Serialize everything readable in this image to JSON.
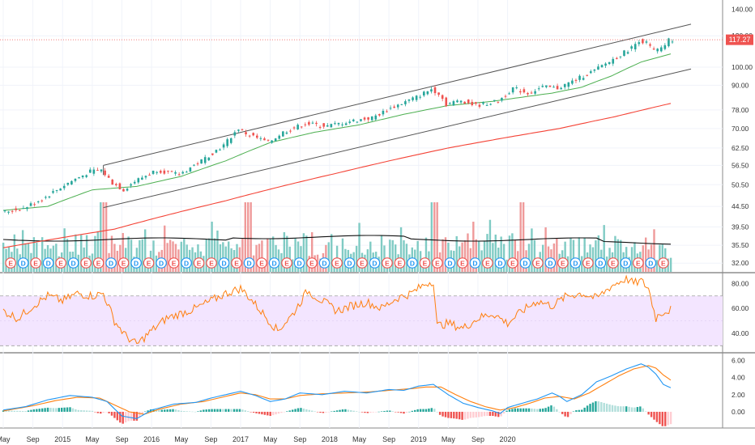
{
  "chart_data": [
    {
      "type": "candlestick",
      "title": "",
      "yscale": "log",
      "ylim": [
        31,
        145
      ],
      "y_ticks": [
        "140.00",
        "120.00",
        "100.00",
        "90.00",
        "78.00",
        "70.00",
        "62.50",
        "56.50",
        "50.50",
        "44.50",
        "39.50",
        "35.50",
        "32.00"
      ],
      "y_tick_values": [
        140,
        120,
        100,
        90,
        78,
        70,
        62.5,
        56.5,
        50.5,
        44.5,
        39.5,
        35.5,
        32
      ],
      "last_price": "117.27",
      "last_price_value": 117.27,
      "colors": {
        "up": "#26a69a",
        "down": "#ef5350",
        "ma50": "#4caf50",
        "ma200": "#f44336",
        "channel": "#555555",
        "volume_ma": "#111111",
        "price_line": "#ef5350"
      },
      "close_path": [
        [
          0,
          43
        ],
        [
          6,
          44
        ],
        [
          12,
          47
        ],
        [
          18,
          51
        ],
        [
          24,
          54.5
        ],
        [
          27,
          55
        ],
        [
          30,
          51
        ],
        [
          33,
          49
        ],
        [
          36,
          51.5
        ],
        [
          42,
          55
        ],
        [
          48,
          53.5
        ],
        [
          54,
          58
        ],
        [
          60,
          63.5
        ],
        [
          64,
          70
        ],
        [
          66,
          68
        ],
        [
          72,
          64.5
        ],
        [
          76,
          68.5
        ],
        [
          82,
          72
        ],
        [
          88,
          71
        ],
        [
          94,
          73
        ],
        [
          100,
          74.5
        ],
        [
          106,
          79.5
        ],
        [
          112,
          84
        ],
        [
          116,
          88
        ],
        [
          118,
          86
        ],
        [
          120,
          80.5
        ],
        [
          124,
          82.5
        ],
        [
          128,
          80
        ],
        [
          134,
          82
        ],
        [
          138,
          88.5
        ],
        [
          142,
          86
        ],
        [
          146,
          89
        ],
        [
          150,
          88.5
        ],
        [
          154,
          92
        ],
        [
          160,
          98
        ],
        [
          166,
          106
        ],
        [
          170,
          112
        ],
        [
          172,
          117
        ],
        [
          174,
          115
        ],
        [
          176,
          110
        ],
        [
          178,
          111
        ],
        [
          180,
          117
        ]
      ],
      "ma50_path": [
        [
          0,
          43.5
        ],
        [
          12,
          44.5
        ],
        [
          24,
          49
        ],
        [
          36,
          50
        ],
        [
          48,
          53
        ],
        [
          60,
          58
        ],
        [
          72,
          64.5
        ],
        [
          84,
          68.5
        ],
        [
          96,
          71.5
        ],
        [
          108,
          76
        ],
        [
          120,
          80
        ],
        [
          132,
          82
        ],
        [
          140,
          84
        ],
        [
          148,
          86
        ],
        [
          156,
          89
        ],
        [
          164,
          95
        ],
        [
          172,
          103
        ],
        [
          180,
          108
        ]
      ],
      "ma200_path": [
        [
          0,
          35
        ],
        [
          30,
          39
        ],
        [
          60,
          46
        ],
        [
          90,
          54
        ],
        [
          120,
          62.5
        ],
        [
          150,
          70
        ],
        [
          165,
          75
        ],
        [
          180,
          81
        ]
      ],
      "channel_upper": [
        [
          27,
          56.5
        ],
        [
          180,
          126
        ]
      ],
      "channel_lower": [
        [
          27,
          44.2
        ],
        [
          180,
          98
        ]
      ],
      "volume_pattern": [
        0.55,
        0.3,
        0.7,
        0.45,
        0.4,
        0.85,
        0.35,
        0.5,
        0.65,
        0.3,
        0.45,
        0.6,
        0.38,
        0.95,
        0.5,
        0.42,
        0.28,
        0.72,
        0.48,
        0.55,
        0.33,
        0.62,
        0.4,
        0.8,
        0.52,
        0.36,
        0.58,
        0.44,
        0.66,
        0.3
      ],
      "earnings_markers": [
        {
          "label": "E",
          "type": "E"
        },
        {
          "label": "D",
          "type": "D"
        },
        {
          "label": "E",
          "type": "E"
        },
        {
          "label": "D",
          "type": "D"
        },
        {
          "label": "E",
          "type": "E"
        },
        {
          "label": "D",
          "type": "D"
        },
        {
          "label": "E",
          "type": "E"
        },
        {
          "label": "E",
          "type": "E"
        },
        {
          "label": "D",
          "type": "D"
        },
        {
          "label": "E",
          "type": "E"
        },
        {
          "label": "D",
          "type": "D"
        },
        {
          "label": "E",
          "type": "E"
        },
        {
          "label": "D",
          "type": "D"
        },
        {
          "label": "E",
          "type": "E"
        },
        {
          "label": "D",
          "type": "D"
        },
        {
          "label": "E",
          "type": "E"
        },
        {
          "label": "E",
          "type": "E"
        },
        {
          "label": "D",
          "type": "D"
        },
        {
          "label": "E",
          "type": "E"
        },
        {
          "label": "D",
          "type": "D"
        },
        {
          "label": "E",
          "type": "E"
        },
        {
          "label": "D",
          "type": "D"
        },
        {
          "label": "E",
          "type": "E"
        },
        {
          "label": "D",
          "type": "D"
        },
        {
          "label": "E",
          "type": "E"
        },
        {
          "label": "D",
          "type": "D"
        },
        {
          "label": "E",
          "type": "E"
        },
        {
          "label": "D",
          "type": "D"
        },
        {
          "label": "E",
          "type": "E"
        },
        {
          "label": "D",
          "type": "D"
        },
        {
          "label": "E",
          "type": "E"
        },
        {
          "label": "E",
          "type": "E"
        },
        {
          "label": "D",
          "type": "D"
        },
        {
          "label": "E",
          "type": "E"
        },
        {
          "label": "E",
          "type": "E"
        },
        {
          "label": "D",
          "type": "D"
        },
        {
          "label": "E",
          "type": "E"
        },
        {
          "label": "D",
          "type": "D"
        },
        {
          "label": "E",
          "type": "E"
        },
        {
          "label": "D",
          "type": "D"
        },
        {
          "label": "E",
          "type": "E"
        },
        {
          "label": "D",
          "type": "D"
        },
        {
          "label": "E",
          "type": "E"
        },
        {
          "label": "D",
          "type": "D"
        },
        {
          "label": "E",
          "type": "E"
        },
        {
          "label": "D",
          "type": "D"
        },
        {
          "label": "E",
          "type": "E"
        },
        {
          "label": "D",
          "type": "D"
        },
        {
          "label": "E",
          "type": "E"
        },
        {
          "label": "D",
          "type": "D"
        },
        {
          "label": "E",
          "type": "E"
        },
        {
          "label": "D",
          "type": "D"
        },
        {
          "label": "E",
          "type": "E"
        }
      ]
    },
    {
      "type": "line",
      "title": "",
      "ylim": [
        25,
        88
      ],
      "y_ticks": [
        "80.00",
        "60.00",
        "40.00"
      ],
      "y_tick_values": [
        80,
        60,
        40
      ],
      "band": [
        30,
        70
      ],
      "colors": {
        "line": "#ff7f0e",
        "band_fill": "#f3e5ff",
        "band_edge": "#9e9e9e"
      },
      "path": [
        [
          0,
          58
        ],
        [
          4,
          52
        ],
        [
          8,
          62
        ],
        [
          12,
          70
        ],
        [
          16,
          66
        ],
        [
          20,
          72
        ],
        [
          24,
          70
        ],
        [
          27,
          72
        ],
        [
          30,
          50
        ],
        [
          33,
          38
        ],
        [
          36,
          31
        ],
        [
          40,
          42
        ],
        [
          44,
          52
        ],
        [
          48,
          56
        ],
        [
          52,
          60
        ],
        [
          56,
          66
        ],
        [
          60,
          72
        ],
        [
          64,
          76
        ],
        [
          66,
          70
        ],
        [
          70,
          56
        ],
        [
          74,
          42
        ],
        [
          78,
          55
        ],
        [
          82,
          74
        ],
        [
          86,
          66
        ],
        [
          90,
          58
        ],
        [
          94,
          62
        ],
        [
          98,
          65
        ],
        [
          102,
          60
        ],
        [
          106,
          68
        ],
        [
          110,
          72
        ],
        [
          114,
          80
        ],
        [
          116,
          82
        ],
        [
          117,
          46
        ],
        [
          120,
          48
        ],
        [
          124,
          44
        ],
        [
          128,
          52
        ],
        [
          132,
          56
        ],
        [
          136,
          48
        ],
        [
          140,
          58
        ],
        [
          144,
          66
        ],
        [
          148,
          62
        ],
        [
          152,
          70
        ],
        [
          156,
          72
        ],
        [
          160,
          68
        ],
        [
          164,
          78
        ],
        [
          168,
          84
        ],
        [
          170,
          80
        ],
        [
          172,
          82
        ],
        [
          174,
          76
        ],
        [
          176,
          52
        ],
        [
          177,
          56
        ],
        [
          180,
          59
        ]
      ]
    },
    {
      "type": "line",
      "title": "",
      "ylim": [
        -1.8,
        6.8
      ],
      "y_ticks": [
        "6.00",
        "4.00",
        "2.00",
        "0.00"
      ],
      "y_tick_values": [
        6,
        4,
        2,
        0
      ],
      "colors": {
        "macd": "#2196f3",
        "signal": "#ff7f0e",
        "hist_up_strong": "#26a69a",
        "hist_up_weak": "#b2dfdb",
        "hist_down_strong": "#ef5350",
        "hist_down_weak": "#ffcdd2"
      },
      "macd_path": [
        [
          0,
          0.2
        ],
        [
          6,
          0.6
        ],
        [
          12,
          1.4
        ],
        [
          18,
          1.9
        ],
        [
          24,
          1.7
        ],
        [
          28,
          1.2
        ],
        [
          32,
          -0.5
        ],
        [
          36,
          -0.8
        ],
        [
          40,
          0.2
        ],
        [
          46,
          0.9
        ],
        [
          52,
          1.1
        ],
        [
          56,
          1.6
        ],
        [
          60,
          2.0
        ],
        [
          64,
          2.4
        ],
        [
          68,
          1.9
        ],
        [
          72,
          1.2
        ],
        [
          76,
          1.5
        ],
        [
          80,
          2.2
        ],
        [
          86,
          2.0
        ],
        [
          92,
          2.4
        ],
        [
          98,
          2.2
        ],
        [
          104,
          2.6
        ],
        [
          108,
          2.5
        ],
        [
          112,
          3.0
        ],
        [
          116,
          3.2
        ],
        [
          120,
          2.0
        ],
        [
          124,
          1.0
        ],
        [
          128,
          0.5
        ],
        [
          132,
          0.1
        ],
        [
          134,
          -0.2
        ],
        [
          136,
          0.5
        ],
        [
          140,
          1.0
        ],
        [
          144,
          1.5
        ],
        [
          148,
          2.2
        ],
        [
          150,
          1.8
        ],
        [
          152,
          1.2
        ],
        [
          156,
          2.0
        ],
        [
          160,
          3.5
        ],
        [
          164,
          4.2
        ],
        [
          168,
          5.0
        ],
        [
          172,
          5.6
        ],
        [
          174,
          5.2
        ],
        [
          176,
          4.4
        ],
        [
          178,
          3.2
        ],
        [
          180,
          2.8
        ]
      ],
      "signal_path": [
        [
          0,
          0.1
        ],
        [
          8,
          0.7
        ],
        [
          14,
          1.3
        ],
        [
          20,
          1.7
        ],
        [
          26,
          1.6
        ],
        [
          30,
          0.8
        ],
        [
          34,
          0.0
        ],
        [
          38,
          -0.3
        ],
        [
          42,
          0.3
        ],
        [
          48,
          0.9
        ],
        [
          54,
          1.2
        ],
        [
          60,
          1.8
        ],
        [
          64,
          2.2
        ],
        [
          68,
          2.0
        ],
        [
          72,
          1.5
        ],
        [
          76,
          1.5
        ],
        [
          80,
          1.9
        ],
        [
          86,
          2.1
        ],
        [
          92,
          2.2
        ],
        [
          98,
          2.3
        ],
        [
          104,
          2.5
        ],
        [
          110,
          2.7
        ],
        [
          114,
          2.9
        ],
        [
          118,
          2.9
        ],
        [
          122,
          2.0
        ],
        [
          126,
          1.2
        ],
        [
          130,
          0.6
        ],
        [
          134,
          0.2
        ],
        [
          138,
          0.5
        ],
        [
          142,
          1.0
        ],
        [
          146,
          1.6
        ],
        [
          150,
          1.8
        ],
        [
          154,
          1.5
        ],
        [
          158,
          2.2
        ],
        [
          162,
          3.2
        ],
        [
          166,
          4.2
        ],
        [
          170,
          5.0
        ],
        [
          174,
          5.4
        ],
        [
          176,
          5.1
        ],
        [
          178,
          4.3
        ],
        [
          180,
          3.7
        ]
      ]
    }
  ],
  "x_axis": {
    "labels": [
      {
        "text": "May",
        "day": 0
      },
      {
        "text": "Sep",
        "day": 8
      },
      {
        "text": "2015",
        "day": 16
      },
      {
        "text": "May",
        "day": 24
      },
      {
        "text": "Sep",
        "day": 32
      },
      {
        "text": "2016",
        "day": 40
      },
      {
        "text": "May",
        "day": 48
      },
      {
        "text": "Sep",
        "day": 56
      },
      {
        "text": "2017",
        "day": 64
      },
      {
        "text": "May",
        "day": 72
      },
      {
        "text": "Sep",
        "day": 80
      },
      {
        "text": "2018",
        "day": 88
      },
      {
        "text": "May",
        "day": 96
      },
      {
        "text": "Sep",
        "day": 104
      },
      {
        "text": "2019",
        "day": 112
      },
      {
        "text": "May",
        "day": 120
      },
      {
        "text": "Sep",
        "day": 128
      },
      {
        "text": "2020",
        "day": 136
      }
    ]
  }
}
